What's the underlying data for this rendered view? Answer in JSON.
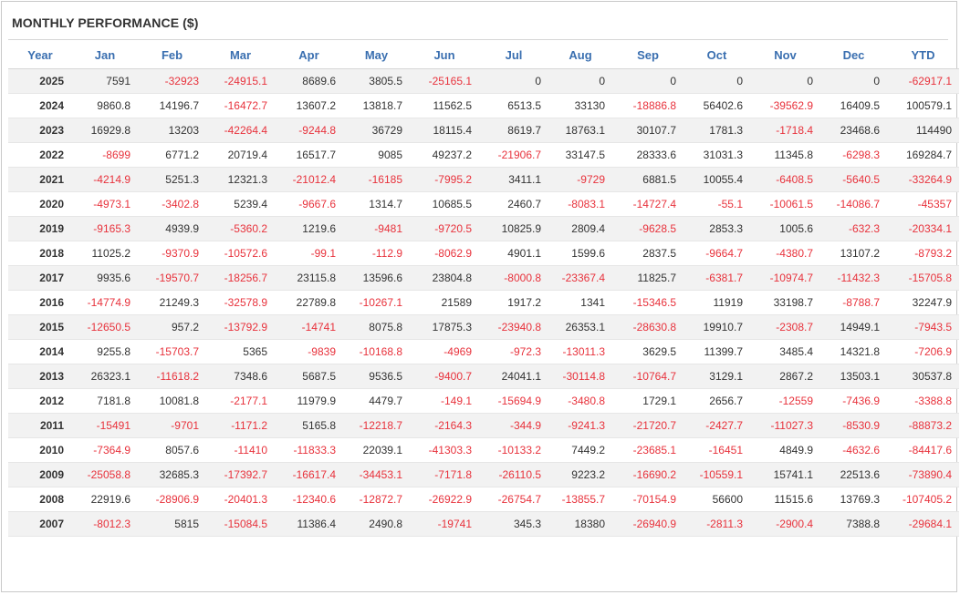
{
  "title": "MONTHLY PERFORMANCE ($)",
  "colors": {
    "header": "#3a6fb0",
    "negative": "#e8323c",
    "positive": "#333333",
    "row_shade": "#f2f2f2"
  },
  "columns": [
    "Year",
    "Jan",
    "Feb",
    "Mar",
    "Apr",
    "May",
    "Jun",
    "Jul",
    "Aug",
    "Sep",
    "Oct",
    "Nov",
    "Dec",
    "YTD"
  ],
  "rows": [
    {
      "year": "2025",
      "values": [
        "7591",
        "-32923",
        "-24915.1",
        "8689.6",
        "3805.5",
        "-25165.1",
        "0",
        "0",
        "0",
        "0",
        "0",
        "0",
        "-62917.1"
      ]
    },
    {
      "year": "2024",
      "values": [
        "9860.8",
        "14196.7",
        "-16472.7",
        "13607.2",
        "13818.7",
        "11562.5",
        "6513.5",
        "33130",
        "-18886.8",
        "56402.6",
        "-39562.9",
        "16409.5",
        "100579.1"
      ]
    },
    {
      "year": "2023",
      "values": [
        "16929.8",
        "13203",
        "-42264.4",
        "-9244.8",
        "36729",
        "18115.4",
        "8619.7",
        "18763.1",
        "30107.7",
        "1781.3",
        "-1718.4",
        "23468.6",
        "114490"
      ]
    },
    {
      "year": "2022",
      "values": [
        "-8699",
        "6771.2",
        "20719.4",
        "16517.7",
        "9085",
        "49237.2",
        "-21906.7",
        "33147.5",
        "28333.6",
        "31031.3",
        "11345.8",
        "-6298.3",
        "169284.7"
      ]
    },
    {
      "year": "2021",
      "values": [
        "-4214.9",
        "5251.3",
        "12321.3",
        "-21012.4",
        "-16185",
        "-7995.2",
        "3411.1",
        "-9729",
        "6881.5",
        "10055.4",
        "-6408.5",
        "-5640.5",
        "-33264.9"
      ]
    },
    {
      "year": "2020",
      "values": [
        "-4973.1",
        "-3402.8",
        "5239.4",
        "-9667.6",
        "1314.7",
        "10685.5",
        "2460.7",
        "-8083.1",
        "-14727.4",
        "-55.1",
        "-10061.5",
        "-14086.7",
        "-45357"
      ]
    },
    {
      "year": "2019",
      "values": [
        "-9165.3",
        "4939.9",
        "-5360.2",
        "1219.6",
        "-9481",
        "-9720.5",
        "10825.9",
        "2809.4",
        "-9628.5",
        "2853.3",
        "1005.6",
        "-632.3",
        "-20334.1"
      ]
    },
    {
      "year": "2018",
      "values": [
        "11025.2",
        "-9370.9",
        "-10572.6",
        "-99.1",
        "-112.9",
        "-8062.9",
        "4901.1",
        "1599.6",
        "2837.5",
        "-9664.7",
        "-4380.7",
        "13107.2",
        "-8793.2"
      ]
    },
    {
      "year": "2017",
      "values": [
        "9935.6",
        "-19570.7",
        "-18256.7",
        "23115.8",
        "13596.6",
        "23804.8",
        "-8000.8",
        "-23367.4",
        "11825.7",
        "-6381.7",
        "-10974.7",
        "-11432.3",
        "-15705.8"
      ]
    },
    {
      "year": "2016",
      "values": [
        "-14774.9",
        "21249.3",
        "-32578.9",
        "22789.8",
        "-10267.1",
        "21589",
        "1917.2",
        "1341",
        "-15346.5",
        "11919",
        "33198.7",
        "-8788.7",
        "32247.9"
      ]
    },
    {
      "year": "2015",
      "values": [
        "-12650.5",
        "957.2",
        "-13792.9",
        "-14741",
        "8075.8",
        "17875.3",
        "-23940.8",
        "26353.1",
        "-28630.8",
        "19910.7",
        "-2308.7",
        "14949.1",
        "-7943.5"
      ]
    },
    {
      "year": "2014",
      "values": [
        "9255.8",
        "-15703.7",
        "5365",
        "-9839",
        "-10168.8",
        "-4969",
        "-972.3",
        "-13011.3",
        "3629.5",
        "11399.7",
        "3485.4",
        "14321.8",
        "-7206.9"
      ]
    },
    {
      "year": "2013",
      "values": [
        "26323.1",
        "-11618.2",
        "7348.6",
        "5687.5",
        "9536.5",
        "-9400.7",
        "24041.1",
        "-30114.8",
        "-10764.7",
        "3129.1",
        "2867.2",
        "13503.1",
        "30537.8"
      ]
    },
    {
      "year": "2012",
      "values": [
        "7181.8",
        "10081.8",
        "-2177.1",
        "11979.9",
        "4479.7",
        "-149.1",
        "-15694.9",
        "-3480.8",
        "1729.1",
        "2656.7",
        "-12559",
        "-7436.9",
        "-3388.8"
      ]
    },
    {
      "year": "2011",
      "values": [
        "-15491",
        "-9701",
        "-1171.2",
        "5165.8",
        "-12218.7",
        "-2164.3",
        "-344.9",
        "-9241.3",
        "-21720.7",
        "-2427.7",
        "-11027.3",
        "-8530.9",
        "-88873.2"
      ]
    },
    {
      "year": "2010",
      "values": [
        "-7364.9",
        "8057.6",
        "-11410",
        "-11833.3",
        "22039.1",
        "-41303.3",
        "-10133.2",
        "7449.2",
        "-23685.1",
        "-16451",
        "4849.9",
        "-4632.6",
        "-84417.6"
      ]
    },
    {
      "year": "2009",
      "values": [
        "-25058.8",
        "32685.3",
        "-17392.7",
        "-16617.4",
        "-34453.1",
        "-7171.8",
        "-26110.5",
        "9223.2",
        "-16690.2",
        "-10559.1",
        "15741.1",
        "22513.6",
        "-73890.4"
      ]
    },
    {
      "year": "2008",
      "values": [
        "22919.6",
        "-28906.9",
        "-20401.3",
        "-12340.6",
        "-12872.7",
        "-26922.9",
        "-26754.7",
        "-13855.7",
        "-70154.9",
        "56600",
        "11515.6",
        "13769.3",
        "-107405.2"
      ]
    },
    {
      "year": "2007",
      "values": [
        "-8012.3",
        "5815",
        "-15084.5",
        "11386.4",
        "2490.8",
        "-19741",
        "345.3",
        "18380",
        "-26940.9",
        "-2811.3",
        "-2900.4",
        "7388.8",
        "-29684.1"
      ]
    }
  ]
}
